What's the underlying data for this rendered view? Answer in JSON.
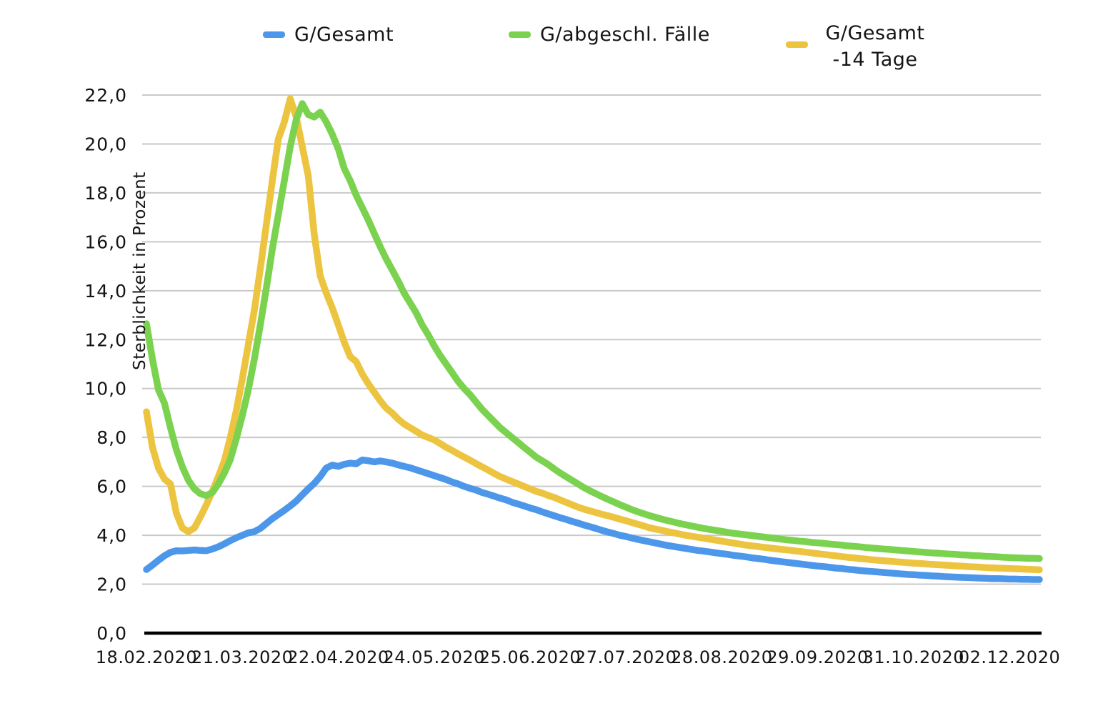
{
  "chart_data": {
    "type": "line",
    "title": "",
    "ylabel": "Sterblichkeit in Prozent",
    "xlabel": "",
    "grid": "horizontal",
    "legend_position": "top",
    "ylim": [
      0,
      22
    ],
    "y_tick_step": 2,
    "y_tick_labels": [
      "22,0",
      "20,0",
      "18,0",
      "16,0",
      "14,0",
      "12,0",
      "10,0",
      "8,0",
      "6,0",
      "4,0",
      "2,0",
      "0,0"
    ],
    "x_tick_labels": [
      "18.02.2020",
      "21.03.2020",
      "22.04.2020",
      "24.05.2020",
      "25.06.2020",
      "27.07.2020",
      "28.08.2020",
      "29.09.2020",
      "31.10.2020",
      "02.12.2020"
    ],
    "x_is_daily_dates": true,
    "x_day_of_first_point": 0,
    "x_day_step_between_points": 2,
    "x_total_days": 298,
    "x_days_between_ticks": 32,
    "series": [
      {
        "name": "G/Gesamt",
        "color": "#4d97ea",
        "values": [
          2.6,
          2.78,
          2.98,
          3.16,
          3.3,
          3.37,
          3.36,
          3.38,
          3.4,
          3.38,
          3.37,
          3.44,
          3.53,
          3.65,
          3.78,
          3.9,
          4.0,
          4.1,
          4.15,
          4.28,
          4.48,
          4.68,
          4.85,
          5.02,
          5.2,
          5.4,
          5.65,
          5.9,
          6.12,
          6.4,
          6.75,
          6.87,
          6.82,
          6.9,
          6.95,
          6.92,
          7.08,
          7.05,
          7.0,
          7.04,
          7.0,
          6.95,
          6.88,
          6.82,
          6.76,
          6.68,
          6.6,
          6.52,
          6.44,
          6.36,
          6.28,
          6.18,
          6.1,
          6.0,
          5.92,
          5.85,
          5.75,
          5.68,
          5.6,
          5.52,
          5.45,
          5.35,
          5.28,
          5.2,
          5.12,
          5.05,
          4.96,
          4.88,
          4.8,
          4.72,
          4.65,
          4.57,
          4.5,
          4.42,
          4.35,
          4.28,
          4.2,
          4.13,
          4.07,
          4.0,
          3.95,
          3.89,
          3.83,
          3.78,
          3.73,
          3.68,
          3.63,
          3.58,
          3.54,
          3.5,
          3.46,
          3.42,
          3.38,
          3.35,
          3.32,
          3.28,
          3.25,
          3.22,
          3.18,
          3.15,
          3.12,
          3.08,
          3.05,
          3.02,
          2.98,
          2.95,
          2.92,
          2.89,
          2.86,
          2.83,
          2.8,
          2.77,
          2.74,
          2.72,
          2.69,
          2.66,
          2.64,
          2.61,
          2.59,
          2.56,
          2.54,
          2.52,
          2.5,
          2.48,
          2.46,
          2.44,
          2.42,
          2.4,
          2.39,
          2.37,
          2.36,
          2.34,
          2.33,
          2.31,
          2.3,
          2.29,
          2.28,
          2.27,
          2.26,
          2.25,
          2.24,
          2.23,
          2.23,
          2.22,
          2.21,
          2.21,
          2.2,
          2.2,
          2.19,
          2.19
        ]
      },
      {
        "name": "G/abgeschl. Fälle",
        "color": "#7bd24f",
        "values": [
          12.65,
          11.2,
          9.95,
          9.4,
          8.4,
          7.5,
          6.8,
          6.25,
          5.9,
          5.7,
          5.62,
          5.75,
          6.1,
          6.55,
          7.1,
          7.95,
          8.9,
          9.95,
          11.2,
          12.6,
          14.1,
          15.7,
          17.1,
          18.5,
          19.9,
          21.0,
          21.65,
          21.2,
          21.1,
          21.3,
          20.9,
          20.4,
          19.8,
          19.0,
          18.5,
          17.9,
          17.4,
          16.9,
          16.35,
          15.8,
          15.3,
          14.85,
          14.4,
          13.9,
          13.5,
          13.1,
          12.6,
          12.2,
          11.75,
          11.35,
          11.0,
          10.65,
          10.3,
          10.0,
          9.75,
          9.45,
          9.15,
          8.9,
          8.65,
          8.4,
          8.2,
          8.0,
          7.8,
          7.6,
          7.4,
          7.2,
          7.05,
          6.9,
          6.72,
          6.55,
          6.4,
          6.25,
          6.1,
          5.95,
          5.82,
          5.7,
          5.58,
          5.47,
          5.36,
          5.25,
          5.15,
          5.05,
          4.96,
          4.88,
          4.8,
          4.73,
          4.66,
          4.6,
          4.54,
          4.48,
          4.43,
          4.38,
          4.33,
          4.28,
          4.24,
          4.2,
          4.16,
          4.12,
          4.08,
          4.05,
          4.02,
          3.99,
          3.96,
          3.93,
          3.9,
          3.87,
          3.84,
          3.81,
          3.79,
          3.76,
          3.74,
          3.71,
          3.69,
          3.67,
          3.64,
          3.62,
          3.6,
          3.57,
          3.55,
          3.53,
          3.5,
          3.48,
          3.46,
          3.44,
          3.42,
          3.4,
          3.38,
          3.36,
          3.34,
          3.32,
          3.3,
          3.28,
          3.27,
          3.25,
          3.23,
          3.22,
          3.2,
          3.19,
          3.17,
          3.16,
          3.14,
          3.13,
          3.12,
          3.1,
          3.09,
          3.08,
          3.07,
          3.06,
          3.06,
          3.05
        ]
      },
      {
        "name": "G/Gesamt -14 Tage",
        "color": "#ecc440",
        "values": [
          9.05,
          7.6,
          6.75,
          6.3,
          6.1,
          4.9,
          4.3,
          4.15,
          4.3,
          4.75,
          5.25,
          5.8,
          6.4,
          7.05,
          8.0,
          9.1,
          10.4,
          11.8,
          13.2,
          14.9,
          16.7,
          18.5,
          20.2,
          20.9,
          21.85,
          21.1,
          19.9,
          18.7,
          16.3,
          14.6,
          13.9,
          13.3,
          12.6,
          11.9,
          11.3,
          11.1,
          10.6,
          10.2,
          9.85,
          9.5,
          9.2,
          9.0,
          8.75,
          8.55,
          8.4,
          8.25,
          8.1,
          8.0,
          7.9,
          7.75,
          7.6,
          7.47,
          7.33,
          7.2,
          7.07,
          6.93,
          6.8,
          6.67,
          6.53,
          6.4,
          6.3,
          6.2,
          6.1,
          6.0,
          5.9,
          5.8,
          5.73,
          5.63,
          5.55,
          5.45,
          5.35,
          5.25,
          5.15,
          5.07,
          5.0,
          4.93,
          4.86,
          4.8,
          4.73,
          4.66,
          4.6,
          4.52,
          4.45,
          4.38,
          4.3,
          4.25,
          4.2,
          4.15,
          4.1,
          4.05,
          4.0,
          3.96,
          3.92,
          3.88,
          3.84,
          3.8,
          3.76,
          3.72,
          3.68,
          3.64,
          3.6,
          3.57,
          3.54,
          3.51,
          3.48,
          3.45,
          3.42,
          3.4,
          3.37,
          3.34,
          3.31,
          3.28,
          3.25,
          3.22,
          3.19,
          3.16,
          3.13,
          3.1,
          3.08,
          3.05,
          3.03,
          3.0,
          2.98,
          2.96,
          2.94,
          2.92,
          2.9,
          2.88,
          2.86,
          2.85,
          2.83,
          2.81,
          2.8,
          2.78,
          2.77,
          2.75,
          2.74,
          2.72,
          2.71,
          2.7,
          2.68,
          2.67,
          2.66,
          2.65,
          2.64,
          2.63,
          2.62,
          2.61,
          2.6,
          2.59
        ]
      }
    ]
  },
  "legend": {
    "item1_label": "G/Gesamt",
    "item2_label": "G/abgeschl. Fälle",
    "item3_label_line1": "G/Gesamt",
    "item3_label_line2": "-14 Tage"
  },
  "y_axis_title": "Sterblichkeit in Prozent",
  "colors": {
    "series_gesamt": "#4d97ea",
    "series_abgeschlossene_faelle": "#7bd24f",
    "series_gesamt_minus_14_tage": "#ecc440",
    "gridline": "#c9c9c9",
    "axis_line": "#000000",
    "text": "#141414",
    "background": "#ffffff"
  }
}
